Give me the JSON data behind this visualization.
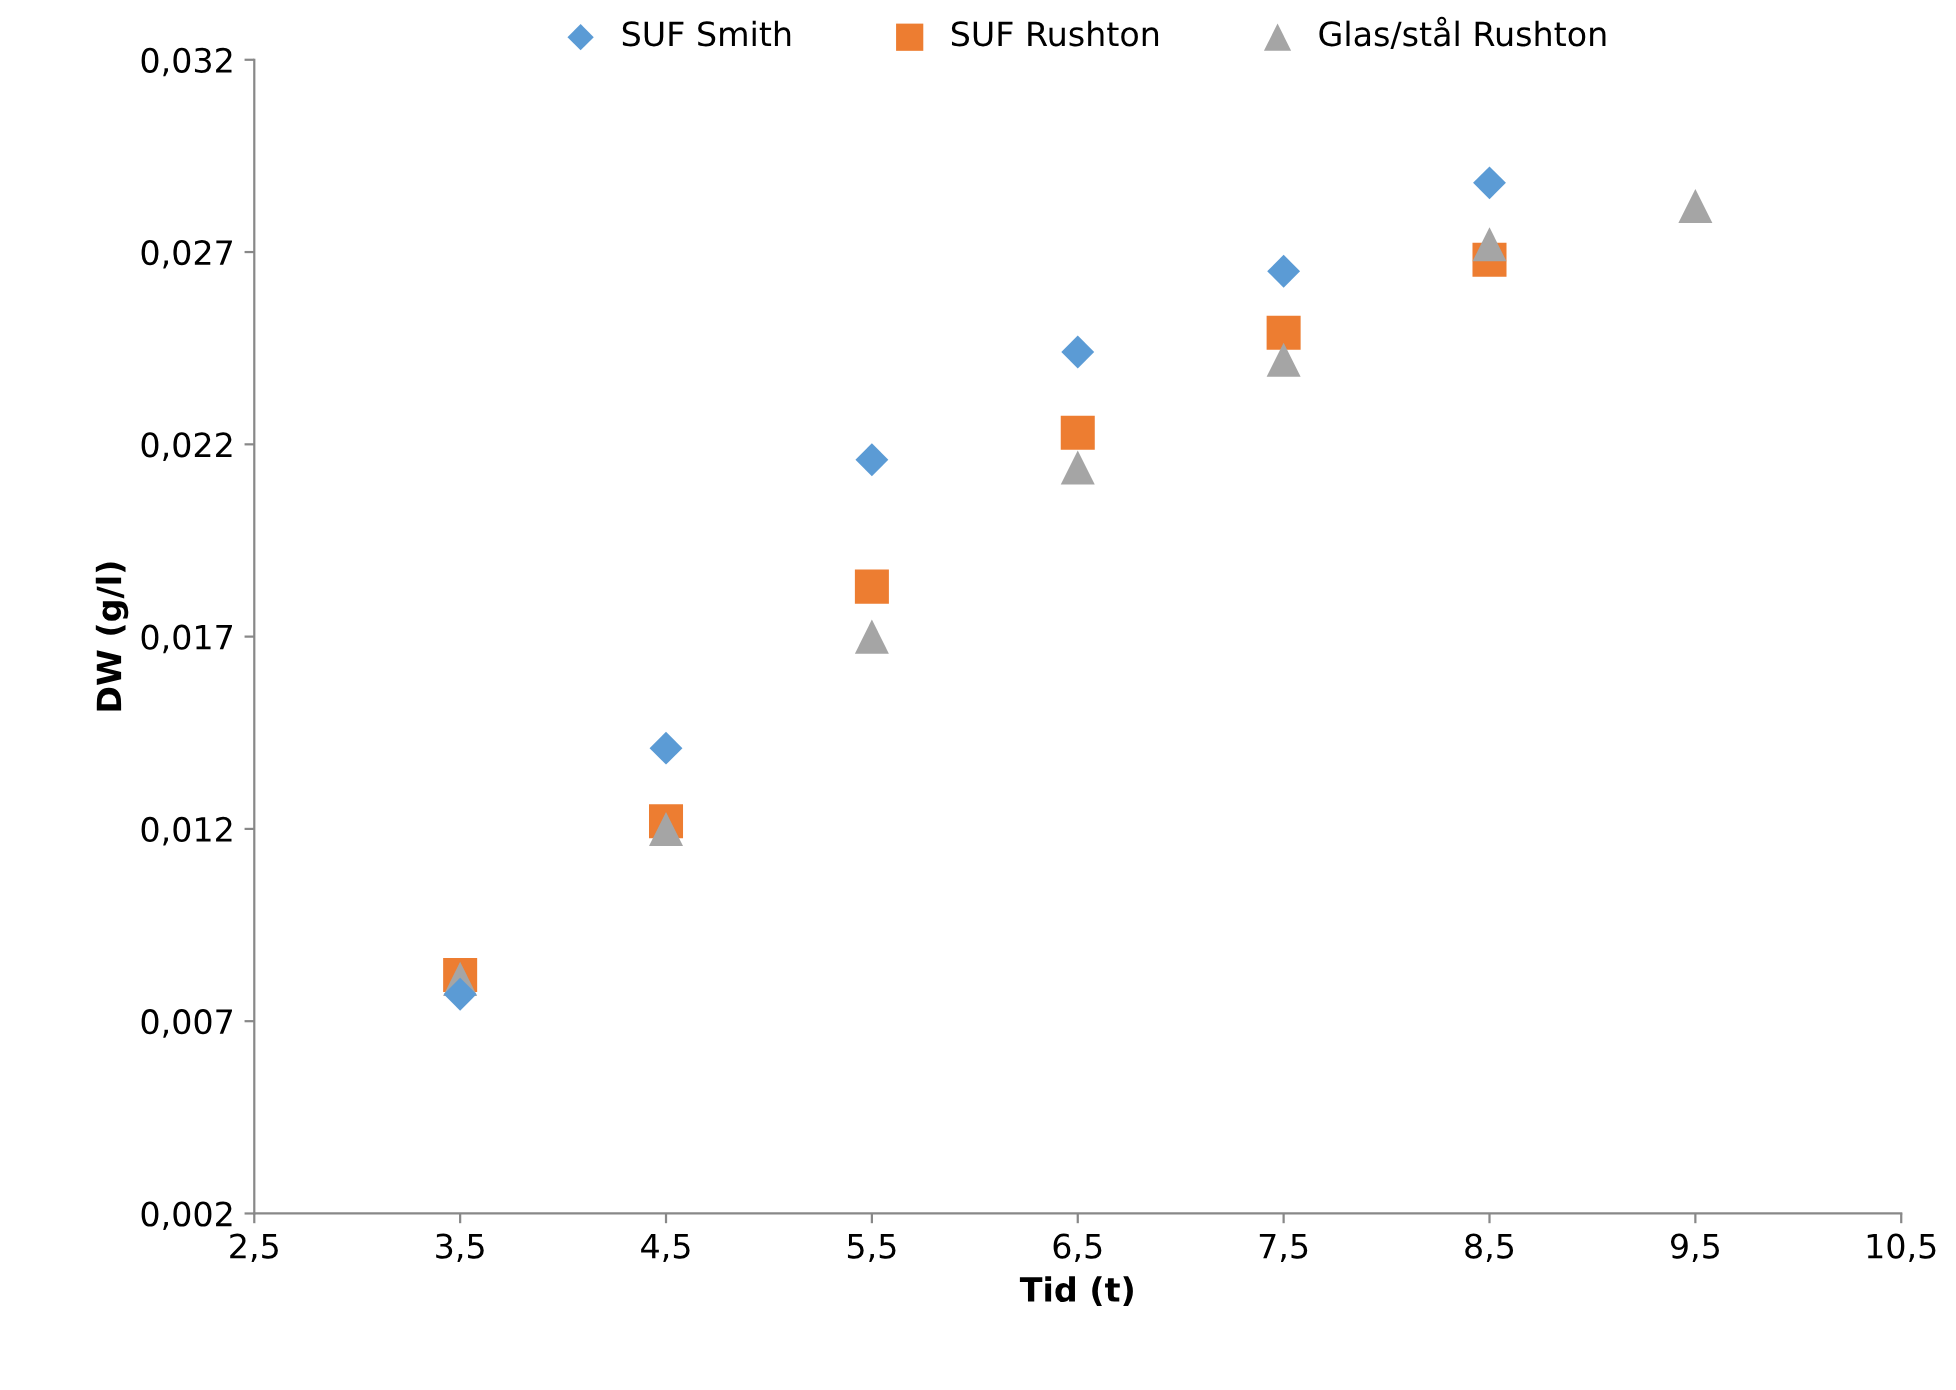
{
  "chart_data": {
    "type": "scatter",
    "xlabel": "Tid (t)",
    "ylabel": "DW (g/l)",
    "xlim": [
      2.5,
      10.5
    ],
    "xticks": [
      {
        "value": 2.5,
        "label": "2,5"
      },
      {
        "value": 3.5,
        "label": "3,5"
      },
      {
        "value": 4.5,
        "label": "4,5"
      },
      {
        "value": 5.5,
        "label": "5,5"
      },
      {
        "value": 6.5,
        "label": "6,5"
      },
      {
        "value": 7.5,
        "label": "7,5"
      },
      {
        "value": 8.5,
        "label": "8,5"
      },
      {
        "value": 9.5,
        "label": "9,5"
      },
      {
        "value": 10.5,
        "label": "10,5"
      }
    ],
    "ylim": [
      0.002,
      0.032
    ],
    "yticks": [
      {
        "value": 0.002,
        "label": "0,002"
      },
      {
        "value": 0.007,
        "label": "0,007"
      },
      {
        "value": 0.012,
        "label": "0,012"
      },
      {
        "value": 0.017,
        "label": "0,017"
      },
      {
        "value": 0.022,
        "label": "0,022"
      },
      {
        "value": 0.027,
        "label": "0,027"
      },
      {
        "value": 0.032,
        "label": "0,032"
      }
    ],
    "grid": false,
    "legend": "top",
    "series": [
      {
        "name": "SUF Smith",
        "color": "#5b9bd5",
        "marker": "diamond",
        "x": [
          3.5,
          4.5,
          5.5,
          6.5,
          7.5,
          8.5
        ],
        "values": [
          0.0077,
          0.0141,
          0.0216,
          0.0244,
          0.0265,
          0.0288
        ]
      },
      {
        "name": "SUF Rushton",
        "color": "#ed7d31",
        "marker": "square",
        "x": [
          3.5,
          4.5,
          5.5,
          6.5,
          7.5,
          8.5
        ],
        "values": [
          0.0082,
          0.0122,
          0.0183,
          0.0223,
          0.0249,
          0.0268
        ]
      },
      {
        "name": "Glas/stål Rushton",
        "color": "#a5a5a5",
        "marker": "triangle",
        "x": [
          3.5,
          4.5,
          5.5,
          6.5,
          7.5,
          8.5,
          9.5
        ],
        "values": [
          0.0081,
          0.012,
          0.017,
          0.0214,
          0.0242,
          0.0272,
          0.0282
        ]
      }
    ]
  }
}
